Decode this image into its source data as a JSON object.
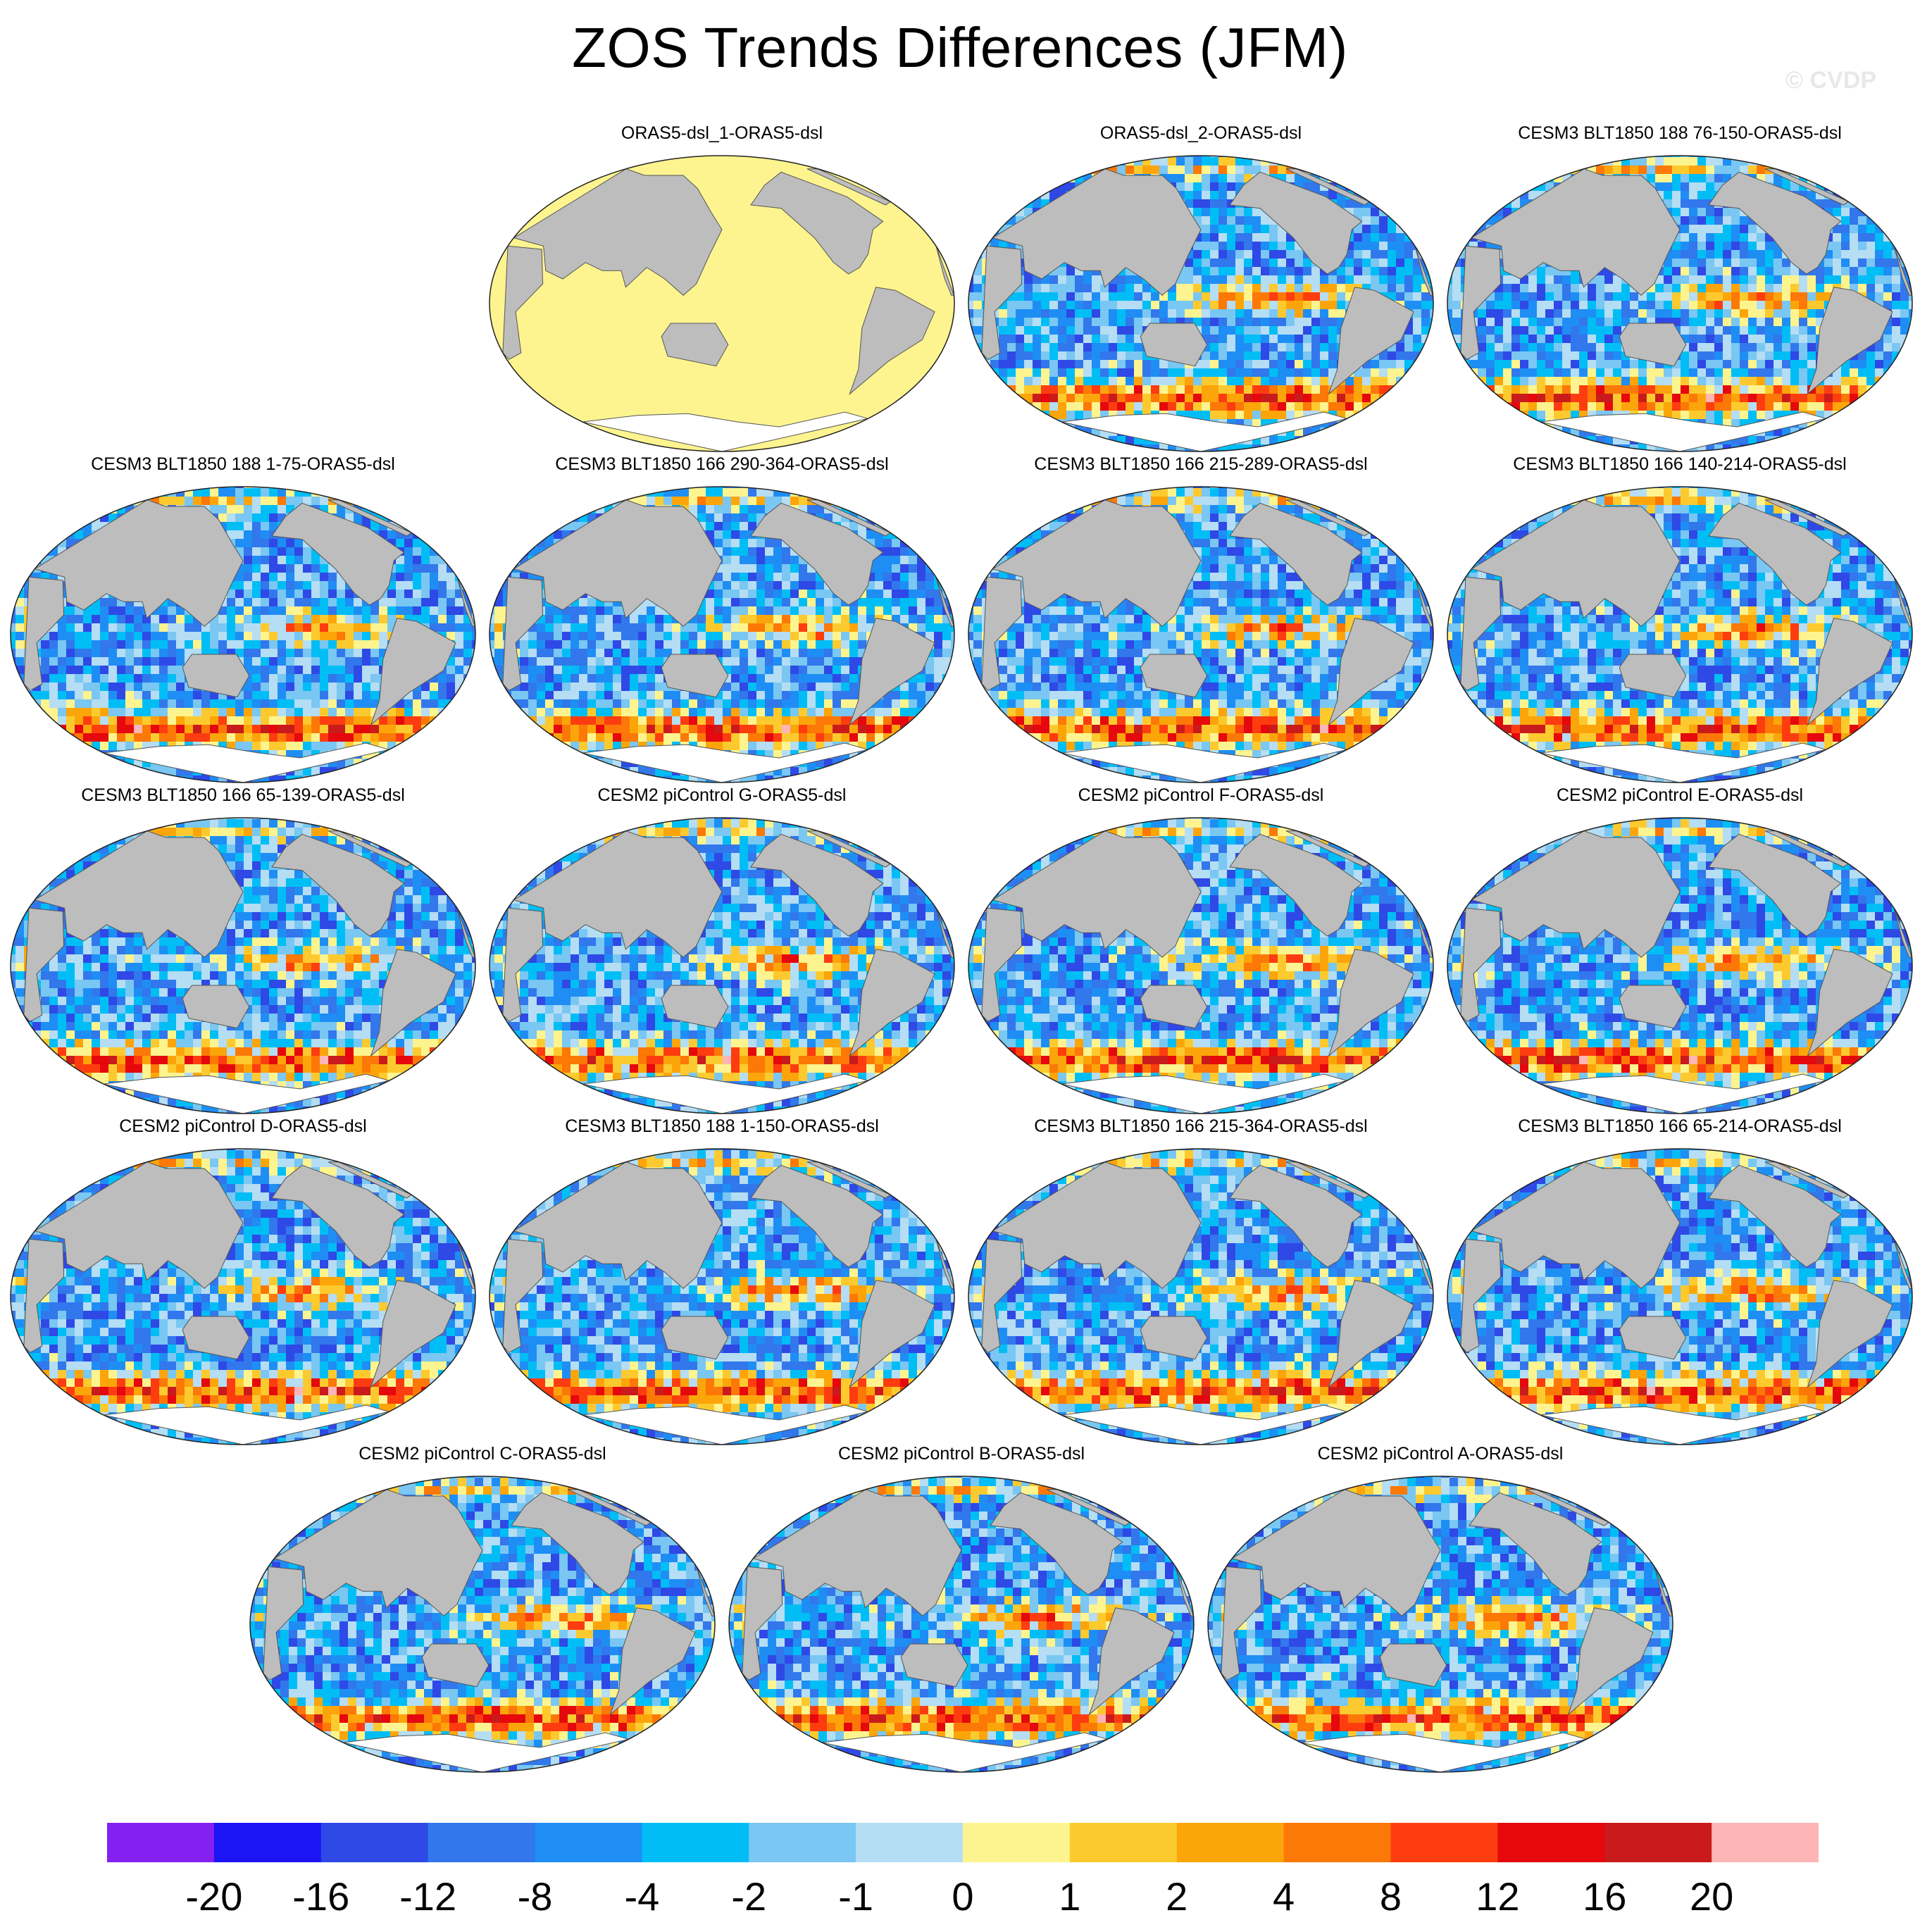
{
  "title": "ZOS Trends Differences (JFM)",
  "watermark": "© CVDP",
  "panels": [
    {
      "label": "ORAS5-dsl_1-ORAS5-dsl",
      "field": "uniform-zero"
    },
    {
      "label": "ORAS5-dsl_2-ORAS5-dsl",
      "field": "trend-difference"
    },
    {
      "label": "CESM3 BLT1850 188 76-150-ORAS5-dsl",
      "field": "trend-difference"
    },
    {
      "label": "CESM3 BLT1850 188 1-75-ORAS5-dsl",
      "field": "trend-difference"
    },
    {
      "label": "CESM3 BLT1850 166 290-364-ORAS5-dsl",
      "field": "trend-difference"
    },
    {
      "label": "CESM3 BLT1850 166 215-289-ORAS5-dsl",
      "field": "trend-difference"
    },
    {
      "label": "CESM3 BLT1850 166 140-214-ORAS5-dsl",
      "field": "trend-difference"
    },
    {
      "label": "CESM3 BLT1850 166 65-139-ORAS5-dsl",
      "field": "trend-difference"
    },
    {
      "label": "CESM2 piControl G-ORAS5-dsl",
      "field": "trend-difference"
    },
    {
      "label": "CESM2 piControl F-ORAS5-dsl",
      "field": "trend-difference"
    },
    {
      "label": "CESM2 piControl E-ORAS5-dsl",
      "field": "trend-difference"
    },
    {
      "label": "CESM2 piControl D-ORAS5-dsl",
      "field": "trend-difference"
    },
    {
      "label": "CESM3 BLT1850 188 1-150-ORAS5-dsl",
      "field": "trend-difference"
    },
    {
      "label": "CESM3 BLT1850 166 215-364-ORAS5-dsl",
      "field": "trend-difference"
    },
    {
      "label": "CESM3 BLT1850 166 65-214-ORAS5-dsl",
      "field": "trend-difference"
    },
    {
      "label": "CESM2 piControl C-ORAS5-dsl",
      "field": "trend-difference"
    },
    {
      "label": "CESM2 piControl B-ORAS5-dsl",
      "field": "trend-difference"
    },
    {
      "label": "CESM2 piControl A-ORAS5-dsl",
      "field": "trend-difference"
    }
  ],
  "colorbar": {
    "labels": [
      "-20",
      "-16",
      "-12",
      "-8",
      "-4",
      "-2",
      "-1",
      "0",
      "1",
      "2",
      "4",
      "8",
      "12",
      "16",
      "20"
    ],
    "colors": [
      "#8521f0",
      "#1c14f5",
      "#2e49e6",
      "#3277eb",
      "#1e8ef5",
      "#00bef5",
      "#79c7f2",
      "#b5ddf3",
      "#fdf48f",
      "#fcca2e",
      "#fca50a",
      "#fc7807",
      "#fd3d10",
      "#e5080c",
      "#c91b1c",
      "#fdb5b5"
    ]
  },
  "land_color": "#bdbdbd"
}
